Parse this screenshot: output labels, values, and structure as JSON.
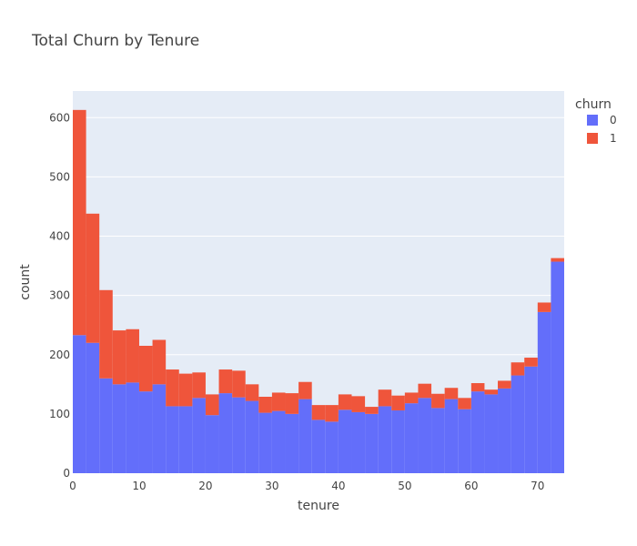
{
  "chart_data": {
    "type": "bar",
    "barmode": "stack",
    "title": "Total Churn by Tenure",
    "xlabel": "tenure",
    "ylabel": "count",
    "xlim": [
      0,
      74
    ],
    "ylim": [
      0,
      645
    ],
    "bin_width": 2,
    "x_bin_starts": [
      0,
      2,
      4,
      6,
      8,
      10,
      12,
      14,
      16,
      18,
      20,
      22,
      24,
      26,
      28,
      30,
      32,
      34,
      36,
      38,
      40,
      42,
      44,
      46,
      48,
      50,
      52,
      54,
      56,
      58,
      60,
      62,
      64,
      66,
      68,
      70,
      72
    ],
    "x_ticks": [
      0,
      10,
      20,
      30,
      40,
      50,
      60,
      70
    ],
    "y_ticks": [
      0,
      100,
      200,
      300,
      400,
      500,
      600
    ],
    "legend": {
      "title": "churn",
      "placement": "top-right"
    },
    "grid": true,
    "background_color": "#e5ecf6",
    "series": [
      {
        "name": "0",
        "color": "#636efa",
        "values": [
          233,
          220,
          160,
          150,
          153,
          138,
          150,
          113,
          113,
          127,
          98,
          135,
          128,
          122,
          102,
          105,
          100,
          125,
          90,
          87,
          107,
          103,
          100,
          113,
          106,
          118,
          127,
          110,
          125,
          108,
          138,
          133,
          143,
          165,
          180,
          272,
          357
        ]
      },
      {
        "name": "1",
        "color": "#ef553b",
        "values": [
          380,
          218,
          149,
          91,
          90,
          77,
          75,
          62,
          55,
          43,
          35,
          40,
          45,
          28,
          27,
          31,
          35,
          29,
          25,
          28,
          26,
          27,
          12,
          28,
          25,
          18,
          24,
          24,
          19,
          19,
          14,
          8,
          13,
          22,
          15,
          16,
          6
        ]
      }
    ]
  }
}
